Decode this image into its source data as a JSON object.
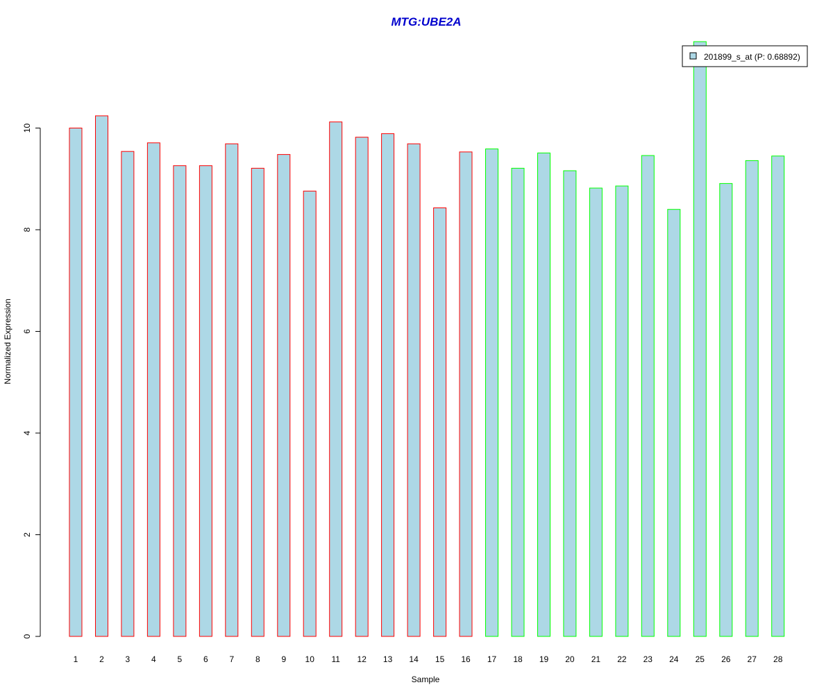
{
  "chart_data": {
    "type": "bar",
    "title": "MTG:UBE2A",
    "xlabel": "Sample",
    "ylabel": "Normalized Expression",
    "categories": [
      "1",
      "2",
      "3",
      "4",
      "5",
      "6",
      "7",
      "8",
      "9",
      "10",
      "11",
      "12",
      "13",
      "14",
      "15",
      "16",
      "17",
      "18",
      "19",
      "20",
      "21",
      "22",
      "23",
      "24",
      "25",
      "26",
      "27",
      "28"
    ],
    "series": [
      {
        "name": "201899_s_at (P: 0.68892)",
        "values": [
          10.0,
          10.24,
          9.54,
          9.71,
          9.26,
          9.26,
          9.69,
          9.21,
          9.48,
          8.76,
          10.12,
          9.82,
          9.89,
          9.69,
          8.43,
          9.53,
          9.59,
          9.21,
          9.51,
          9.16,
          8.82,
          8.86,
          9.46,
          8.4,
          11.7,
          8.91,
          9.36,
          9.45
        ]
      }
    ],
    "groups": [
      {
        "from": 1,
        "to": 16,
        "border_color": "#ff0000"
      },
      {
        "from": 17,
        "to": 28,
        "border_color": "#00ff00"
      }
    ],
    "fill_color": "#add8e6",
    "title_color": "#0000cd",
    "yticks": [
      0,
      2,
      4,
      6,
      8,
      10
    ],
    "ylim": [
      0,
      11.7
    ],
    "grid": false,
    "legend_position": "top-right"
  }
}
